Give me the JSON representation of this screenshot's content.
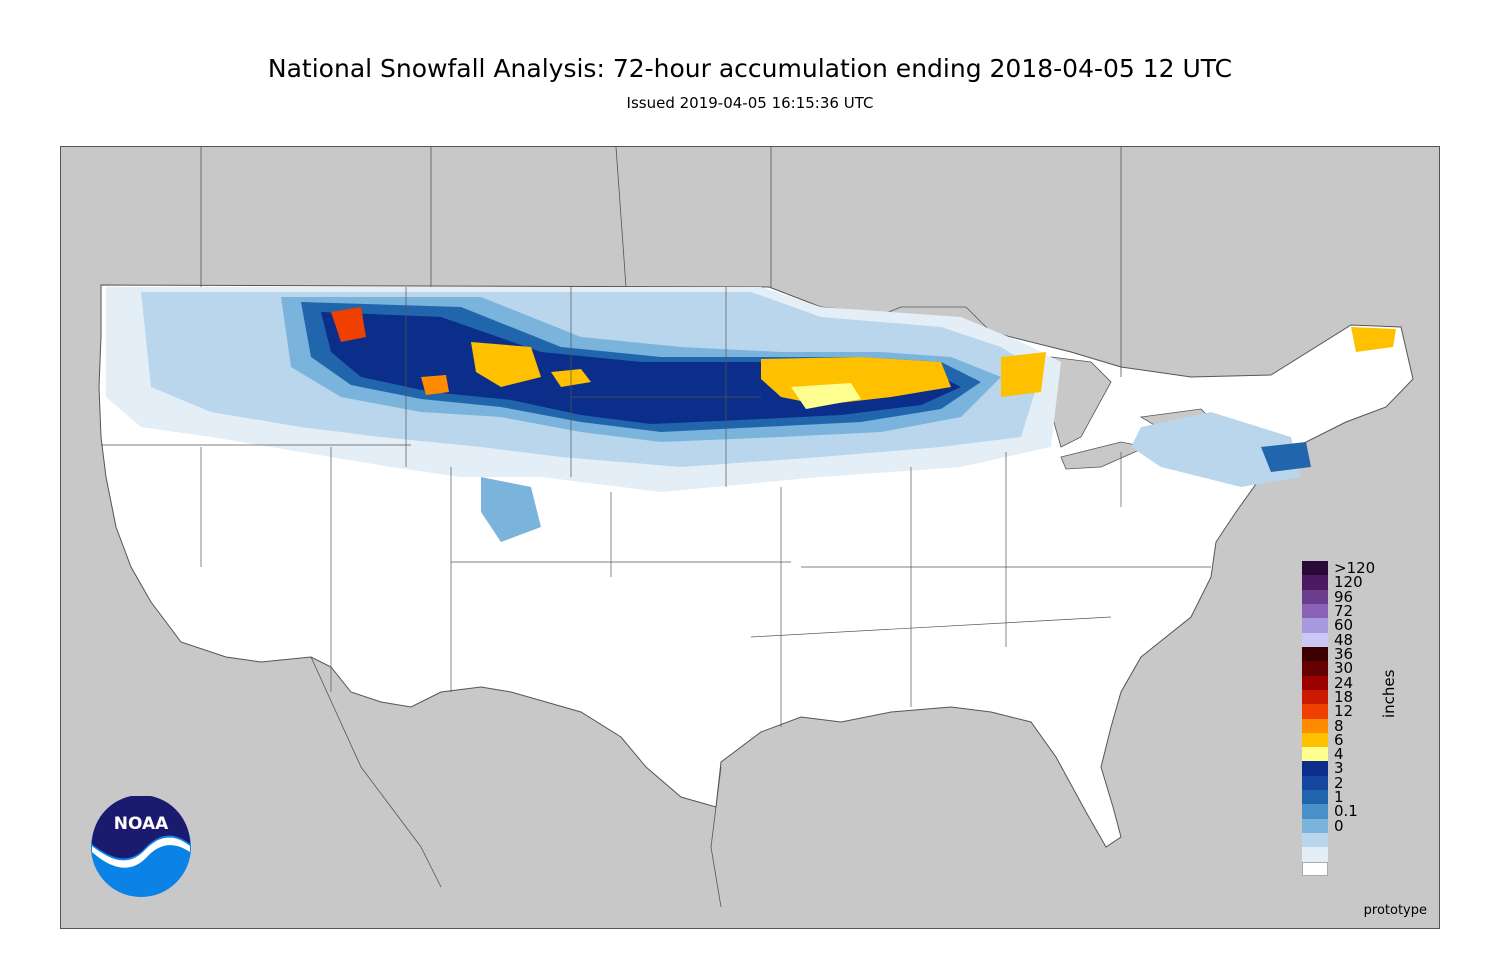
{
  "header": {
    "title": "National Snowfall Analysis: 72-hour accumulation ending 2018-04-05 12 UTC",
    "subtitle": "Issued 2019-04-05 16:15:36 UTC"
  },
  "map": {
    "footnote": "prototype",
    "land_color": "#ffffff",
    "background_color": "#c8c8c8",
    "boundary_color": "#555555"
  },
  "legend": {
    "units": "inches",
    "bins": [
      {
        "label": ">120",
        "color": "#2a0a36"
      },
      {
        "label": "120",
        "color": "#4b1a63"
      },
      {
        "label": "96",
        "color": "#6b3d8f"
      },
      {
        "label": "72",
        "color": "#8a63b8"
      },
      {
        "label": "60",
        "color": "#a99ae0"
      },
      {
        "label": "48",
        "color": "#ccc8f5"
      },
      {
        "label": "36",
        "color": "#3a0000"
      },
      {
        "label": "30",
        "color": "#650000"
      },
      {
        "label": "24",
        "color": "#9a0000"
      },
      {
        "label": "18",
        "color": "#cc1a00"
      },
      {
        "label": "12",
        "color": "#f04000"
      },
      {
        "label": "8",
        "color": "#ff8c00"
      },
      {
        "label": "6",
        "color": "#ffc000"
      },
      {
        "label": "4",
        "color": "#ffff90"
      },
      {
        "label": "3",
        "color": "#0a2e8a"
      },
      {
        "label": "2",
        "color": "#1746a0"
      },
      {
        "label": "1",
        "color": "#2166ac"
      },
      {
        "label": "0.1",
        "color": "#4a90c8"
      },
      {
        "label": "0",
        "color": "#7ab4dd"
      },
      {
        "label": "",
        "color": "#b9d6ec"
      },
      {
        "label": "",
        "color": "#e4eef7"
      },
      {
        "label": "",
        "color": "#ffffff"
      }
    ]
  },
  "logo": {
    "text": "NOAA",
    "ring_color": "#0a82e6",
    "top_color": "#1a1a6e"
  }
}
